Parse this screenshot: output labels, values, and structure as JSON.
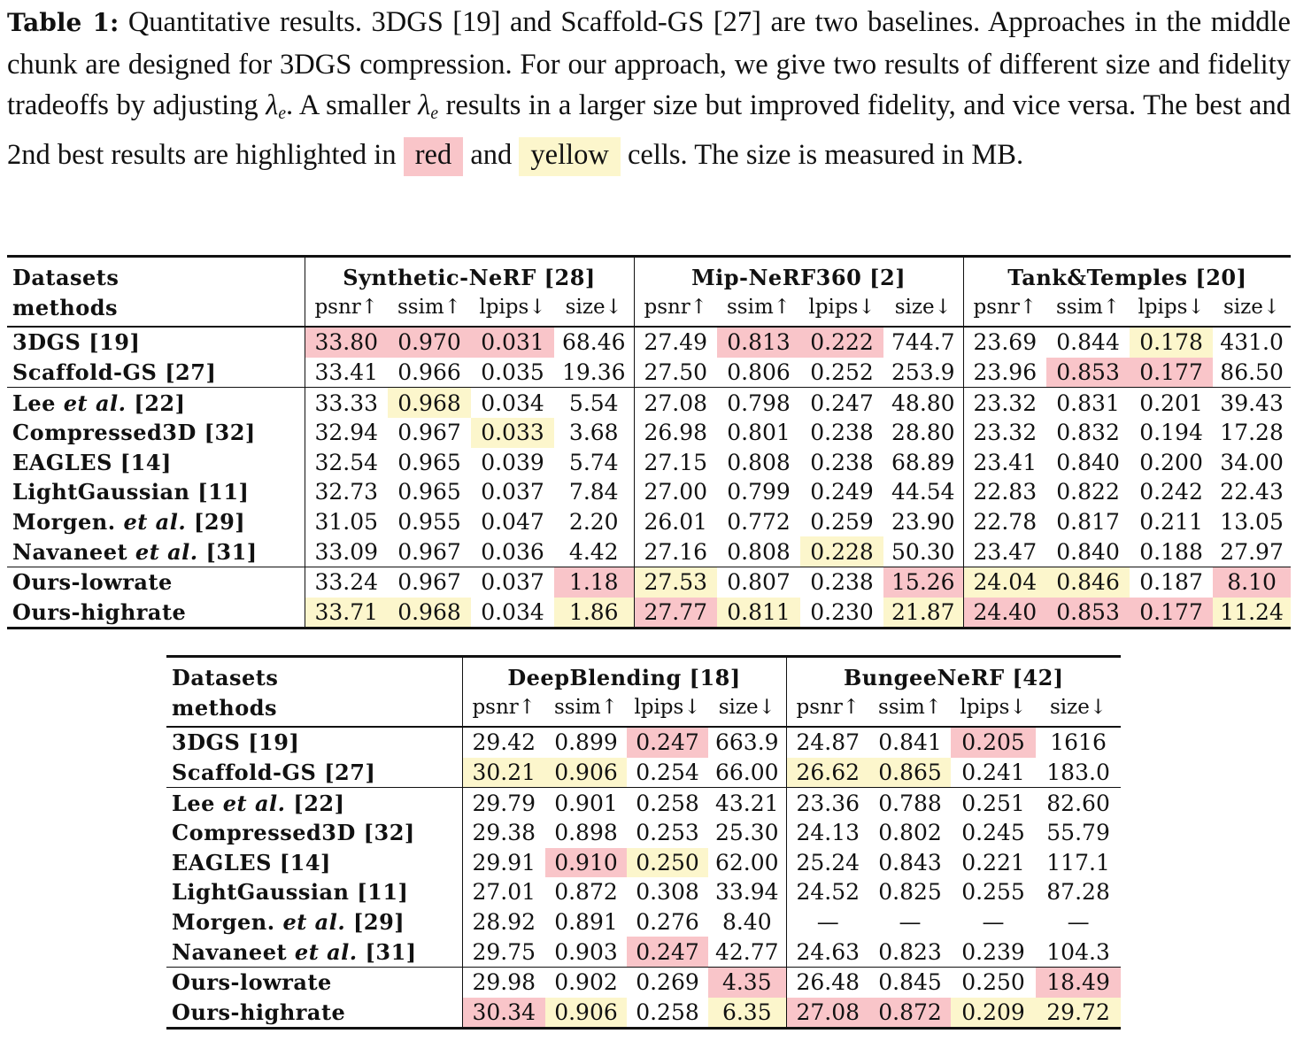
{
  "caption": {
    "label": "Table 1:",
    "text_a": "Quantitative results. 3DGS [19] and Scaffold-GS [27] are two baselines. Approaches in the middle chunk are designed for 3DGS compression. For our approach, we give two results of different size and fidelity tradeoffs by adjusting ",
    "lambda": "λ",
    "lambda_sub": "e",
    "text_b": ". A smaller ",
    "text_c": " results in a larger size but improved fidelity, and vice versa. The best and 2nd best results are highlighted in ",
    "red_word": "red",
    "and_word": " and ",
    "yellow_word": "yellow",
    "text_d": " cells. The size is measured in MB."
  },
  "colors": {
    "best": "#f9c5c9",
    "second": "#fcf6cc"
  },
  "header_labels": {
    "datasets": "Datasets",
    "methods": "methods"
  },
  "metrics": [
    "psnr↑",
    "ssim↑",
    "lpips↓",
    "size↓"
  ],
  "methods": [
    {
      "name": "3DGS [19]"
    },
    {
      "name": "Scaffold-GS [27]"
    },
    {
      "pre": "Lee ",
      "em": "et al.",
      "post": " [22]"
    },
    {
      "name": "Compressed3D [32]"
    },
    {
      "name": "EAGLES [14]"
    },
    {
      "name": "LightGaussian [11]"
    },
    {
      "pre": "Morgen. ",
      "em": "et al.",
      "post": " [29]"
    },
    {
      "pre": "Navaneet ",
      "em": "et al.",
      "post": " [31]"
    },
    {
      "name": "Ours-lowrate"
    },
    {
      "name": "Ours-highrate"
    }
  ],
  "table1": {
    "datasets": [
      "Synthetic-NeRF [28]",
      "Mip-NeRF360 [2]",
      "Tank&Temples [20]"
    ],
    "rows": [
      [
        [
          "33.80",
          "r"
        ],
        [
          "0.970",
          "r"
        ],
        [
          "0.031",
          "r"
        ],
        [
          "68.46",
          ""
        ],
        [
          "27.49",
          ""
        ],
        [
          "0.813",
          "r"
        ],
        [
          "0.222",
          "r"
        ],
        [
          "744.7",
          ""
        ],
        [
          "23.69",
          ""
        ],
        [
          "0.844",
          ""
        ],
        [
          "0.178",
          "y"
        ],
        [
          "431.0",
          ""
        ]
      ],
      [
        [
          "33.41",
          ""
        ],
        [
          "0.966",
          ""
        ],
        [
          "0.035",
          ""
        ],
        [
          "19.36",
          ""
        ],
        [
          "27.50",
          ""
        ],
        [
          "0.806",
          ""
        ],
        [
          "0.252",
          ""
        ],
        [
          "253.9",
          ""
        ],
        [
          "23.96",
          ""
        ],
        [
          "0.853",
          "r"
        ],
        [
          "0.177",
          "r"
        ],
        [
          "86.50",
          ""
        ]
      ],
      [
        [
          "33.33",
          ""
        ],
        [
          "0.968",
          "y"
        ],
        [
          "0.034",
          ""
        ],
        [
          "5.54",
          ""
        ],
        [
          "27.08",
          ""
        ],
        [
          "0.798",
          ""
        ],
        [
          "0.247",
          ""
        ],
        [
          "48.80",
          ""
        ],
        [
          "23.32",
          ""
        ],
        [
          "0.831",
          ""
        ],
        [
          "0.201",
          ""
        ],
        [
          "39.43",
          ""
        ]
      ],
      [
        [
          "32.94",
          ""
        ],
        [
          "0.967",
          ""
        ],
        [
          "0.033",
          "y"
        ],
        [
          "3.68",
          ""
        ],
        [
          "26.98",
          ""
        ],
        [
          "0.801",
          ""
        ],
        [
          "0.238",
          ""
        ],
        [
          "28.80",
          ""
        ],
        [
          "23.32",
          ""
        ],
        [
          "0.832",
          ""
        ],
        [
          "0.194",
          ""
        ],
        [
          "17.28",
          ""
        ]
      ],
      [
        [
          "32.54",
          ""
        ],
        [
          "0.965",
          ""
        ],
        [
          "0.039",
          ""
        ],
        [
          "5.74",
          ""
        ],
        [
          "27.15",
          ""
        ],
        [
          "0.808",
          ""
        ],
        [
          "0.238",
          ""
        ],
        [
          "68.89",
          ""
        ],
        [
          "23.41",
          ""
        ],
        [
          "0.840",
          ""
        ],
        [
          "0.200",
          ""
        ],
        [
          "34.00",
          ""
        ]
      ],
      [
        [
          "32.73",
          ""
        ],
        [
          "0.965",
          ""
        ],
        [
          "0.037",
          ""
        ],
        [
          "7.84",
          ""
        ],
        [
          "27.00",
          ""
        ],
        [
          "0.799",
          ""
        ],
        [
          "0.249",
          ""
        ],
        [
          "44.54",
          ""
        ],
        [
          "22.83",
          ""
        ],
        [
          "0.822",
          ""
        ],
        [
          "0.242",
          ""
        ],
        [
          "22.43",
          ""
        ]
      ],
      [
        [
          "31.05",
          ""
        ],
        [
          "0.955",
          ""
        ],
        [
          "0.047",
          ""
        ],
        [
          "2.20",
          ""
        ],
        [
          "26.01",
          ""
        ],
        [
          "0.772",
          ""
        ],
        [
          "0.259",
          ""
        ],
        [
          "23.90",
          ""
        ],
        [
          "22.78",
          ""
        ],
        [
          "0.817",
          ""
        ],
        [
          "0.211",
          ""
        ],
        [
          "13.05",
          ""
        ]
      ],
      [
        [
          "33.09",
          ""
        ],
        [
          "0.967",
          ""
        ],
        [
          "0.036",
          ""
        ],
        [
          "4.42",
          ""
        ],
        [
          "27.16",
          ""
        ],
        [
          "0.808",
          ""
        ],
        [
          "0.228",
          "y"
        ],
        [
          "50.30",
          ""
        ],
        [
          "23.47",
          ""
        ],
        [
          "0.840",
          ""
        ],
        [
          "0.188",
          ""
        ],
        [
          "27.97",
          ""
        ]
      ],
      [
        [
          "33.24",
          ""
        ],
        [
          "0.967",
          ""
        ],
        [
          "0.037",
          ""
        ],
        [
          "1.18",
          "r"
        ],
        [
          "27.53",
          "y"
        ],
        [
          "0.807",
          ""
        ],
        [
          "0.238",
          ""
        ],
        [
          "15.26",
          "r"
        ],
        [
          "24.04",
          "y"
        ],
        [
          "0.846",
          "y"
        ],
        [
          "0.187",
          ""
        ],
        [
          "8.10",
          "r"
        ]
      ],
      [
        [
          "33.71",
          "y"
        ],
        [
          "0.968",
          "y"
        ],
        [
          "0.034",
          ""
        ],
        [
          "1.86",
          "y"
        ],
        [
          "27.77",
          "r"
        ],
        [
          "0.811",
          "y"
        ],
        [
          "0.230",
          ""
        ],
        [
          "21.87",
          "y"
        ],
        [
          "24.40",
          "r"
        ],
        [
          "0.853",
          "r"
        ],
        [
          "0.177",
          "r"
        ],
        [
          "11.24",
          "y"
        ]
      ]
    ]
  },
  "table2": {
    "datasets": [
      "DeepBlending [18]",
      "BungeeNeRF [42]"
    ],
    "rows": [
      [
        [
          "29.42",
          ""
        ],
        [
          "0.899",
          ""
        ],
        [
          "0.247",
          "r"
        ],
        [
          "663.9",
          ""
        ],
        [
          "24.87",
          ""
        ],
        [
          "0.841",
          ""
        ],
        [
          "0.205",
          "r"
        ],
        [
          "1616",
          ""
        ]
      ],
      [
        [
          "30.21",
          "y"
        ],
        [
          "0.906",
          "y"
        ],
        [
          "0.254",
          ""
        ],
        [
          "66.00",
          ""
        ],
        [
          "26.62",
          "y"
        ],
        [
          "0.865",
          "y"
        ],
        [
          "0.241",
          ""
        ],
        [
          "183.0",
          ""
        ]
      ],
      [
        [
          "29.79",
          ""
        ],
        [
          "0.901",
          ""
        ],
        [
          "0.258",
          ""
        ],
        [
          "43.21",
          ""
        ],
        [
          "23.36",
          ""
        ],
        [
          "0.788",
          ""
        ],
        [
          "0.251",
          ""
        ],
        [
          "82.60",
          ""
        ]
      ],
      [
        [
          "29.38",
          ""
        ],
        [
          "0.898",
          ""
        ],
        [
          "0.253",
          ""
        ],
        [
          "25.30",
          ""
        ],
        [
          "24.13",
          ""
        ],
        [
          "0.802",
          ""
        ],
        [
          "0.245",
          ""
        ],
        [
          "55.79",
          ""
        ]
      ],
      [
        [
          "29.91",
          ""
        ],
        [
          "0.910",
          "r"
        ],
        [
          "0.250",
          "y"
        ],
        [
          "62.00",
          ""
        ],
        [
          "25.24",
          ""
        ],
        [
          "0.843",
          ""
        ],
        [
          "0.221",
          ""
        ],
        [
          "117.1",
          ""
        ]
      ],
      [
        [
          "27.01",
          ""
        ],
        [
          "0.872",
          ""
        ],
        [
          "0.308",
          ""
        ],
        [
          "33.94",
          ""
        ],
        [
          "24.52",
          ""
        ],
        [
          "0.825",
          ""
        ],
        [
          "0.255",
          ""
        ],
        [
          "87.28",
          ""
        ]
      ],
      [
        [
          "28.92",
          ""
        ],
        [
          "0.891",
          ""
        ],
        [
          "0.276",
          ""
        ],
        [
          "8.40",
          ""
        ],
        [
          "—",
          ""
        ],
        [
          "—",
          ""
        ],
        [
          "—",
          ""
        ],
        [
          "—",
          ""
        ]
      ],
      [
        [
          "29.75",
          ""
        ],
        [
          "0.903",
          ""
        ],
        [
          "0.247",
          "r"
        ],
        [
          "42.77",
          ""
        ],
        [
          "24.63",
          ""
        ],
        [
          "0.823",
          ""
        ],
        [
          "0.239",
          ""
        ],
        [
          "104.3",
          ""
        ]
      ],
      [
        [
          "29.98",
          ""
        ],
        [
          "0.902",
          ""
        ],
        [
          "0.269",
          ""
        ],
        [
          "4.35",
          "r"
        ],
        [
          "26.48",
          ""
        ],
        [
          "0.845",
          ""
        ],
        [
          "0.250",
          ""
        ],
        [
          "18.49",
          "r"
        ]
      ],
      [
        [
          "30.34",
          "r"
        ],
        [
          "0.906",
          "y"
        ],
        [
          "0.258",
          ""
        ],
        [
          "6.35",
          "y"
        ],
        [
          "27.08",
          "r"
        ],
        [
          "0.872",
          "r"
        ],
        [
          "0.209",
          "y"
        ],
        [
          "29.72",
          "y"
        ]
      ]
    ]
  }
}
